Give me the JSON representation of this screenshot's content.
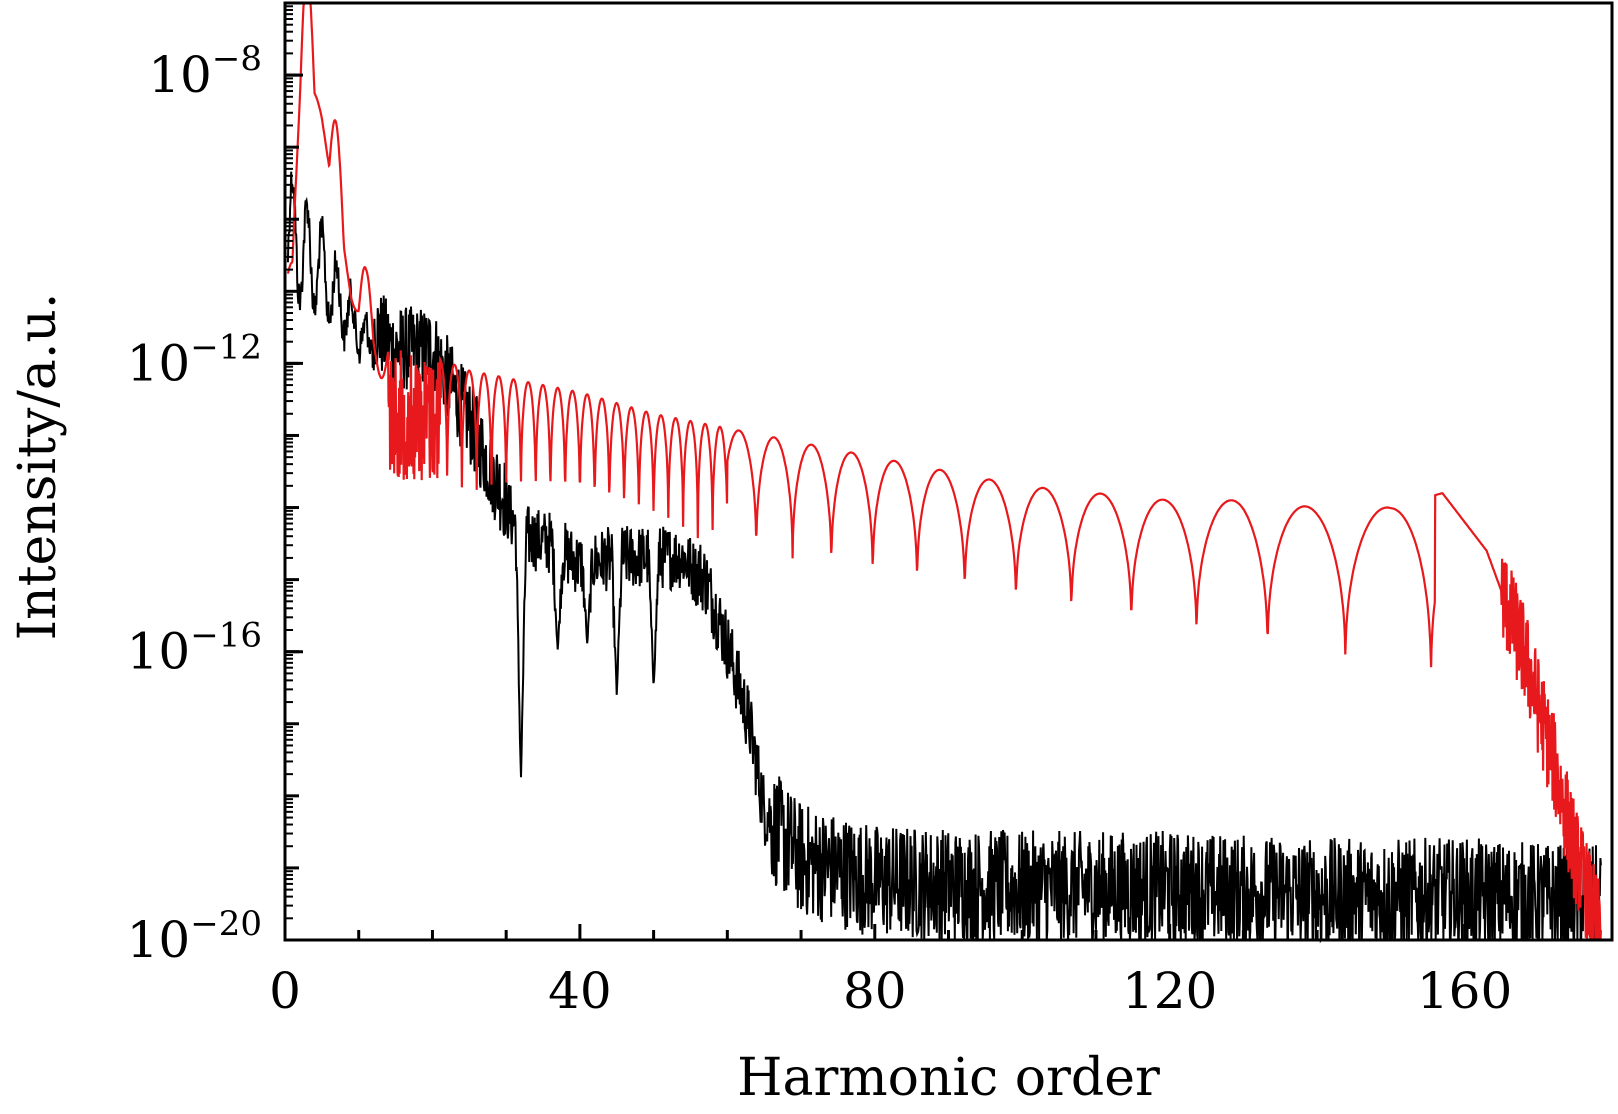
{
  "chart_data": {
    "type": "line",
    "xlabel": "Harmonic order",
    "ylabel": "Intensity/a.u.",
    "xlim": [
      0,
      180
    ],
    "ylim_log10": [
      -20,
      -7
    ],
    "yscale": "log",
    "grid": false,
    "legend": "none",
    "x_ticks": [
      0,
      40,
      80,
      120,
      160
    ],
    "x_tick_labels": [
      "0",
      "40",
      "80",
      "120",
      "160"
    ],
    "y_ticks": [
      {
        "base": "10",
        "exp": "−8",
        "log10": -8
      },
      {
        "base": "10",
        "exp": "−12",
        "log10": -12
      },
      {
        "base": "10",
        "exp": "−16",
        "log10": -16
      },
      {
        "base": "10",
        "exp": "−20",
        "log10": -20
      }
    ],
    "series": [
      {
        "color": "#e8191c",
        "description_points_log10": [
          [
            1,
            -10
          ],
          [
            2,
            -7.5
          ],
          [
            3,
            -7
          ],
          [
            5,
            -8.0
          ],
          [
            7,
            -9.3
          ],
          [
            9,
            -10.5
          ],
          [
            11,
            -11.3
          ],
          [
            13,
            -11.6
          ],
          [
            15,
            -11.8
          ],
          [
            20,
            -11.9
          ],
          [
            25,
            -12.1
          ],
          [
            30,
            -12.2
          ],
          [
            40,
            -12.4
          ],
          [
            50,
            -12.7
          ],
          [
            60,
            -12.9
          ],
          [
            70,
            -13.1
          ],
          [
            80,
            -13.3
          ],
          [
            90,
            -13.5
          ],
          [
            100,
            -13.7
          ],
          [
            110,
            -13.8
          ],
          [
            120,
            -13.9
          ],
          [
            130,
            -13.9
          ],
          [
            140,
            -14.0
          ],
          [
            150,
            -14.0
          ],
          [
            157,
            -13.8
          ],
          [
            163,
            -14.6
          ],
          [
            168,
            -16.0
          ],
          [
            172,
            -17.5
          ],
          [
            175,
            -18.8
          ],
          [
            178,
            -19.8
          ]
        ],
        "peak_spacing": 2,
        "minima_depth_log10": {
          "start": -13.5,
          "end": -16.5
        }
      },
      {
        "color": "#000000",
        "description_points_log10": [
          [
            1,
            -10
          ],
          [
            5,
            -10.5
          ],
          [
            10,
            -11.3
          ],
          [
            15,
            -11.8
          ],
          [
            20,
            -11.8
          ],
          [
            22,
            -12.2
          ],
          [
            25,
            -12.8
          ],
          [
            28,
            -13.5
          ],
          [
            32,
            -14.3
          ],
          [
            36,
            -14.4
          ],
          [
            40,
            -14.7
          ],
          [
            45,
            -14.6
          ],
          [
            50,
            -14.6
          ],
          [
            54,
            -14.6
          ],
          [
            57,
            -15.0
          ],
          [
            60,
            -15.9
          ],
          [
            63,
            -17.0
          ],
          [
            65,
            -18.2
          ],
          [
            70,
            -18.8
          ],
          [
            80,
            -19.1
          ],
          [
            100,
            -19.2
          ],
          [
            120,
            -19.2
          ],
          [
            140,
            -19.3
          ],
          [
            160,
            -19.3
          ],
          [
            178,
            -19.4
          ]
        ],
        "deep_minima": [
          [
            32,
            -17.8
          ],
          [
            37,
            -16.0
          ],
          [
            41,
            -15.9
          ],
          [
            45,
            -16.6
          ],
          [
            50,
            -16.5
          ]
        ]
      }
    ]
  }
}
